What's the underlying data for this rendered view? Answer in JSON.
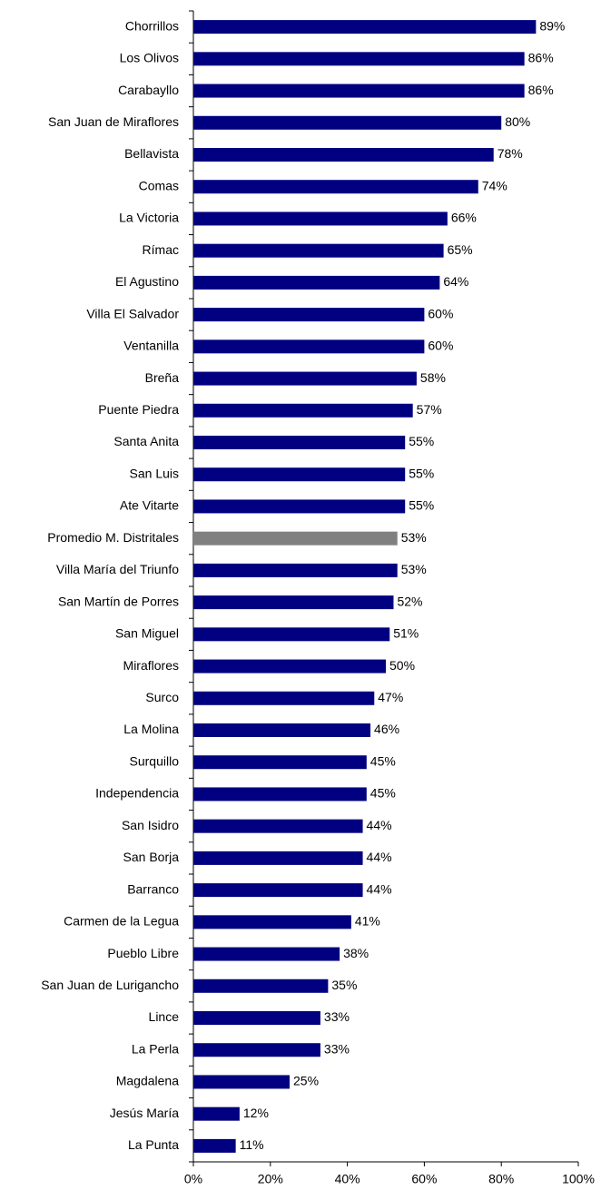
{
  "chart_data": {
    "type": "barh",
    "categories": [
      "Chorrillos",
      "Los Olivos",
      "Carabayllo",
      "San Juan de Miraflores",
      "Bellavista",
      "Comas",
      "La Victoria",
      "Rímac",
      "El Agustino",
      "Villa El Salvador",
      "Ventanilla",
      "Breña",
      "Puente Piedra",
      "Santa Anita",
      "San Luis",
      "Ate Vitarte",
      "Promedio M. Distritales",
      "Villa María del Triunfo",
      "San Martín de Porres",
      "San Miguel",
      "Miraflores",
      "Surco",
      "La Molina",
      "Surquillo",
      "Independencia",
      "San Isidro",
      "San Borja",
      "Barranco",
      "Carmen de la Legua",
      "Pueblo Libre",
      "San Juan de Lurigancho",
      "Lince",
      "La Perla",
      "Magdalena",
      "Jesús María",
      "La Punta"
    ],
    "values": [
      89,
      86,
      86,
      80,
      78,
      74,
      66,
      65,
      64,
      60,
      60,
      58,
      57,
      55,
      55,
      55,
      53,
      53,
      52,
      51,
      50,
      47,
      46,
      45,
      45,
      44,
      44,
      44,
      41,
      38,
      35,
      33,
      33,
      25,
      12,
      11
    ],
    "value_labels": [
      "89%",
      "86%",
      "86%",
      "80%",
      "78%",
      "74%",
      "66%",
      "65%",
      "64%",
      "60%",
      "60%",
      "58%",
      "57%",
      "55%",
      "55%",
      "55%",
      "53%",
      "53%",
      "52%",
      "51%",
      "50%",
      "47%",
      "46%",
      "45%",
      "45%",
      "44%",
      "44%",
      "44%",
      "41%",
      "38%",
      "35%",
      "33%",
      "33%",
      "25%",
      "12%",
      "11%"
    ],
    "colors": [
      "#000080",
      "#000080",
      "#000080",
      "#000080",
      "#000080",
      "#000080",
      "#000080",
      "#000080",
      "#000080",
      "#000080",
      "#000080",
      "#000080",
      "#000080",
      "#000080",
      "#000080",
      "#000080",
      "#808080",
      "#000080",
      "#000080",
      "#000080",
      "#000080",
      "#000080",
      "#000080",
      "#000080",
      "#000080",
      "#000080",
      "#000080",
      "#000080",
      "#000080",
      "#000080",
      "#000080",
      "#000080",
      "#000080",
      "#000080",
      "#000080",
      "#000080"
    ],
    "xlim": [
      0,
      100
    ],
    "xticks": [
      {
        "value": 0,
        "label": "0%"
      },
      {
        "value": 20,
        "label": "20%"
      },
      {
        "value": 40,
        "label": "40%"
      },
      {
        "value": 60,
        "label": "60%"
      },
      {
        "value": 80,
        "label": "80%"
      },
      {
        "value": 100,
        "label": "100%"
      }
    ],
    "grid": false
  }
}
